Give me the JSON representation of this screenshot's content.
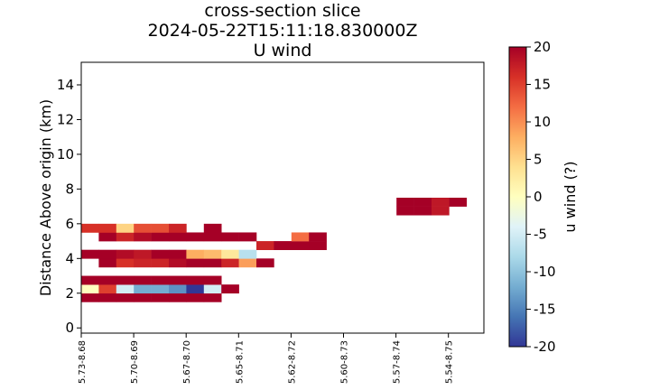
{
  "chart_data": {
    "type": "heatmap",
    "title": [
      "cross-section slice",
      "2024-05-22T15:11:18.830000Z",
      "U wind"
    ],
    "xlabel": "",
    "ylabel": "Distance Above origin (km)",
    "x_tick_labels": [
      "5.73-8.68",
      "5.70-8.69",
      "5.67-8.70",
      "5.65-8.71",
      "5.62-8.72",
      "5.60-8.73",
      "5.57-8.74",
      "5.54-8.75"
    ],
    "y_ticks": [
      0,
      2,
      4,
      6,
      8,
      10,
      12,
      14
    ],
    "ylim": [
      -0.3,
      15.3
    ],
    "x_cells": 23,
    "colorbar": {
      "label": "u wind (?)",
      "vmin": -20,
      "vmax": 20,
      "ticks": [
        -20,
        -15,
        -10,
        -5,
        0,
        5,
        10,
        15,
        20
      ],
      "colormap": "RdYlBu_r",
      "colors": [
        "#313695",
        "#4575b4",
        "#74add1",
        "#abd9e9",
        "#e0f3f8",
        "#ffffbf",
        "#fee090",
        "#fdae61",
        "#f46d43",
        "#d73027",
        "#a50026"
      ]
    },
    "cells": [
      {
        "c": 0,
        "r": 1.5,
        "v": 20
      },
      {
        "c": 1,
        "r": 1.5,
        "v": 20
      },
      {
        "c": 2,
        "r": 1.5,
        "v": 20
      },
      {
        "c": 3,
        "r": 1.5,
        "v": 20
      },
      {
        "c": 4,
        "r": 1.5,
        "v": 20
      },
      {
        "c": 5,
        "r": 1.5,
        "v": 20
      },
      {
        "c": 6,
        "r": 1.5,
        "v": 20
      },
      {
        "c": 7,
        "r": 1.5,
        "v": 20
      },
      {
        "c": 0,
        "r": 2.0,
        "v": 0
      },
      {
        "c": 1,
        "r": 2.0,
        "v": 15
      },
      {
        "c": 2,
        "r": 2.0,
        "v": -5
      },
      {
        "c": 3,
        "r": 2.0,
        "v": -12
      },
      {
        "c": 4,
        "r": 2.0,
        "v": -12
      },
      {
        "c": 5,
        "r": 2.0,
        "v": -14
      },
      {
        "c": 6,
        "r": 2.0,
        "v": -20
      },
      {
        "c": 7,
        "r": 2.0,
        "v": -5
      },
      {
        "c": 8,
        "r": 2.0,
        "v": 20
      },
      {
        "c": 0,
        "r": 2.5,
        "v": 20
      },
      {
        "c": 1,
        "r": 2.5,
        "v": 20
      },
      {
        "c": 2,
        "r": 2.5,
        "v": 20
      },
      {
        "c": 3,
        "r": 2.5,
        "v": 20
      },
      {
        "c": 4,
        "r": 2.5,
        "v": 20
      },
      {
        "c": 5,
        "r": 2.5,
        "v": 20
      },
      {
        "c": 6,
        "r": 2.5,
        "v": 20
      },
      {
        "c": 7,
        "r": 2.5,
        "v": 20
      },
      {
        "c": 1,
        "r": 3.5,
        "v": 20
      },
      {
        "c": 2,
        "r": 3.5,
        "v": 16
      },
      {
        "c": 3,
        "r": 3.5,
        "v": 17
      },
      {
        "c": 4,
        "r": 3.5,
        "v": 17
      },
      {
        "c": 5,
        "r": 3.5,
        "v": 19
      },
      {
        "c": 6,
        "r": 3.5,
        "v": 20
      },
      {
        "c": 7,
        "r": 3.5,
        "v": 20
      },
      {
        "c": 8,
        "r": 3.5,
        "v": 17
      },
      {
        "c": 9,
        "r": 3.5,
        "v": 9
      },
      {
        "c": 10,
        "r": 3.5,
        "v": 20
      },
      {
        "c": 0,
        "r": 4.0,
        "v": 20
      },
      {
        "c": 1,
        "r": 4.0,
        "v": 20
      },
      {
        "c": 2,
        "r": 4.0,
        "v": 19
      },
      {
        "c": 3,
        "r": 4.0,
        "v": 18
      },
      {
        "c": 4,
        "r": 4.0,
        "v": 20
      },
      {
        "c": 5,
        "r": 4.0,
        "v": 20
      },
      {
        "c": 6,
        "r": 4.0,
        "v": 8
      },
      {
        "c": 7,
        "r": 4.0,
        "v": 7
      },
      {
        "c": 8,
        "r": 4.0,
        "v": 3
      },
      {
        "c": 9,
        "r": 4.0,
        "v": -7
      },
      {
        "c": 10,
        "r": 4.5,
        "v": 17
      },
      {
        "c": 11,
        "r": 4.5,
        "v": 20
      },
      {
        "c": 12,
        "r": 4.5,
        "v": 20
      },
      {
        "c": 13,
        "r": 4.5,
        "v": 20
      },
      {
        "c": 1,
        "r": 5.0,
        "v": 20
      },
      {
        "c": 2,
        "r": 5.0,
        "v": 17
      },
      {
        "c": 3,
        "r": 5.0,
        "v": 19
      },
      {
        "c": 4,
        "r": 5.0,
        "v": 20
      },
      {
        "c": 5,
        "r": 5.0,
        "v": 20
      },
      {
        "c": 6,
        "r": 5.0,
        "v": 20
      },
      {
        "c": 7,
        "r": 5.0,
        "v": 20
      },
      {
        "c": 8,
        "r": 5.0,
        "v": 20
      },
      {
        "c": 9,
        "r": 5.0,
        "v": 20
      },
      {
        "c": 12,
        "r": 5.0,
        "v": 12
      },
      {
        "c": 13,
        "r": 5.0,
        "v": 20
      },
      {
        "c": 0,
        "r": 5.5,
        "v": 16
      },
      {
        "c": 1,
        "r": 5.5,
        "v": 16
      },
      {
        "c": 2,
        "r": 5.5,
        "v": 5
      },
      {
        "c": 3,
        "r": 5.5,
        "v": 14
      },
      {
        "c": 4,
        "r": 5.5,
        "v": 14
      },
      {
        "c": 5,
        "r": 5.5,
        "v": 17
      },
      {
        "c": 7,
        "r": 5.5,
        "v": 20
      },
      {
        "c": 18,
        "r": 6.5,
        "v": 20
      },
      {
        "c": 19,
        "r": 6.5,
        "v": 20
      },
      {
        "c": 20,
        "r": 6.5,
        "v": 18
      },
      {
        "c": 21,
        "r": 7.0,
        "v": 20
      },
      {
        "c": 18,
        "r": 7.0,
        "v": 20
      },
      {
        "c": 19,
        "r": 7.0,
        "v": 20
      },
      {
        "c": 20,
        "r": 7.0,
        "v": 18
      }
    ]
  }
}
